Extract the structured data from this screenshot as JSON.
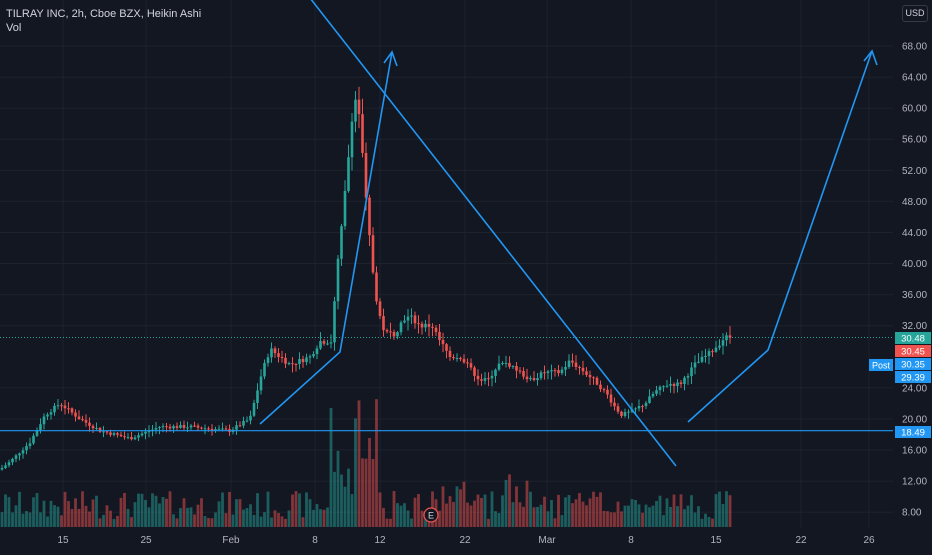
{
  "header": {
    "symbol_line": "TILRAY INC, 2h, Cboe BZX, Heikin Ashi",
    "volume_label": "Vol",
    "currency": "USD"
  },
  "colors": {
    "background": "#131722",
    "grid": "#1e222d",
    "up": "#26a69a",
    "down": "#ef5350",
    "drawing": "#2196f3",
    "axis_text": "#b2b5be"
  },
  "chart_data": {
    "type": "candlestick",
    "style": "Heikin Ashi",
    "interval": "2h",
    "x_axis_labels": [
      "15",
      "25",
      "Feb",
      "8",
      "12",
      "22",
      "Mar",
      "8",
      "15",
      "22",
      "26"
    ],
    "y_axis_labels": [
      "68.00",
      "64.00",
      "60.00",
      "56.00",
      "52.00",
      "48.00",
      "44.00",
      "40.00",
      "36.00",
      "32.00",
      "24.00",
      "20.00",
      "16.00",
      "12.00",
      "8.00"
    ],
    "price_labels": [
      {
        "text": "30.48",
        "color": "#26a69a"
      },
      {
        "text": "30.45",
        "color": "#ef5350"
      },
      {
        "text": "30.35",
        "color": "#2196f3"
      },
      {
        "text": "29.39",
        "color": "#2196f3"
      },
      {
        "text": "18.49",
        "color": "#2196f3"
      }
    ],
    "post_label": "Post",
    "earnings_marker": "E",
    "horizontal_line_price": 18.49,
    "last_price_line": 30.48,
    "annotations": {
      "trendline": "descending line from the January peak to early March",
      "arrows": "two upward projection arrows",
      "horizontal_support": 18.49
    }
  }
}
